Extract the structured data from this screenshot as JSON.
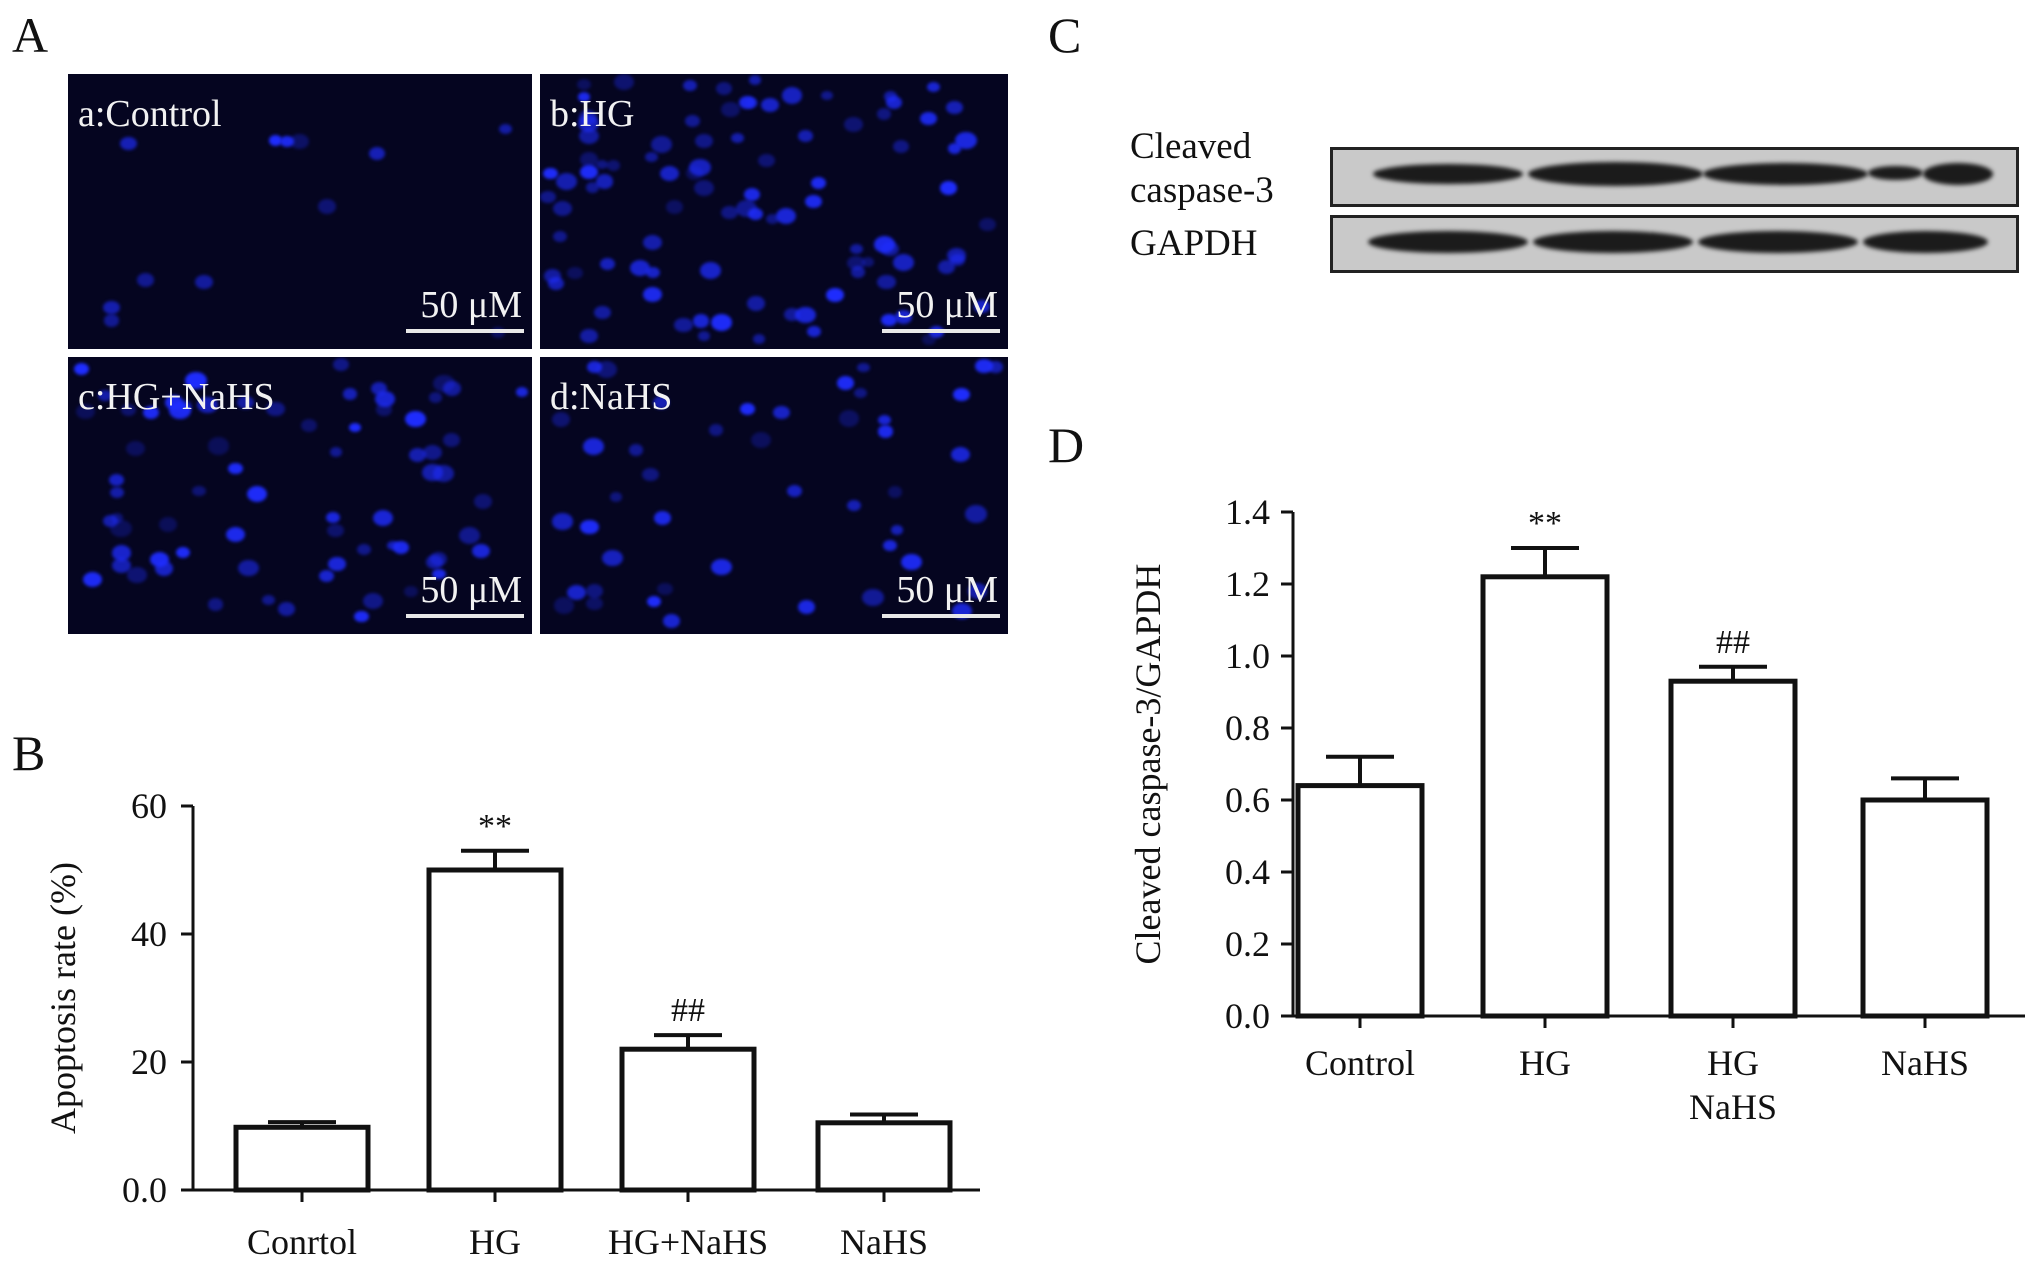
{
  "panels": {
    "a": {
      "letter": "A",
      "images": [
        {
          "label": "a:Control",
          "scale_bar": "50 μM"
        },
        {
          "label": "b:HG",
          "scale_bar": "50 μM"
        },
        {
          "label": "c:HG+NaHS",
          "scale_bar": "50 μM"
        },
        {
          "label": "d:NaHS",
          "scale_bar": "50 μM"
        }
      ]
    },
    "b": {
      "letter": "B"
    },
    "c": {
      "letter": "C",
      "rows": [
        {
          "label": "Cleaved\ncaspase-3"
        },
        {
          "label": "GAPDH"
        }
      ]
    },
    "d": {
      "letter": "D"
    }
  },
  "colors": {
    "fluorescence": "#1f2dff",
    "background": "#050520",
    "ink": "#111111"
  },
  "chart_data": [
    {
      "type": "bar",
      "panel": "B",
      "categories": [
        "Conrtol",
        "HG",
        "HG+NaHS",
        "NaHS"
      ],
      "values": [
        9.8,
        50,
        22,
        10.5
      ],
      "errors": [
        0.8,
        3,
        2.2,
        1.3
      ],
      "annotations": [
        "",
        "**",
        "##",
        ""
      ],
      "ylabel": "Apoptosis rate (%)",
      "ylim": [
        0,
        60
      ],
      "yticks": [
        0,
        20,
        40,
        60
      ],
      "ytick_labels": [
        "0.0",
        "20",
        "40",
        "60"
      ],
      "grid": false
    },
    {
      "type": "bar",
      "panel": "D",
      "categories": [
        "Control",
        "HG",
        "HG\nNaHS",
        "NaHS"
      ],
      "values": [
        0.64,
        1.22,
        0.93,
        0.6
      ],
      "errors": [
        0.08,
        0.08,
        0.04,
        0.06
      ],
      "annotations": [
        "",
        "**",
        "##",
        ""
      ],
      "ylabel": "Cleaved caspase-3/GAPDH",
      "ylim": [
        0,
        1.4
      ],
      "yticks": [
        0,
        0.2,
        0.4,
        0.6,
        0.8,
        1.0,
        1.2,
        1.4
      ],
      "ytick_labels": [
        "0.0",
        "0.2",
        "0.4",
        "0.6",
        "0.8",
        "1.0",
        "1.2",
        "1.4"
      ],
      "grid": false
    }
  ]
}
